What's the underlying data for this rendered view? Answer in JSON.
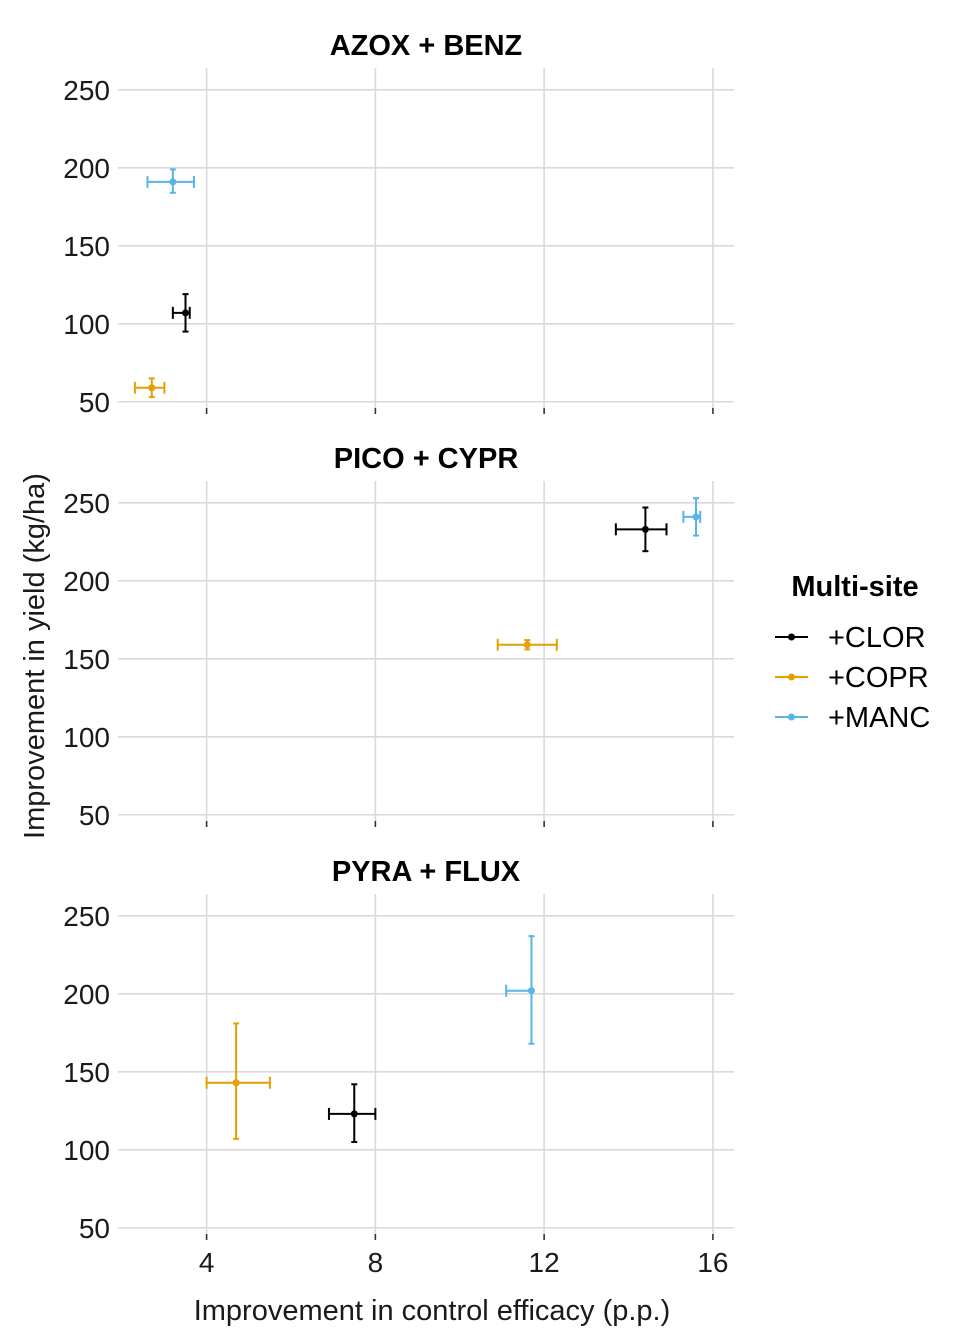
{
  "chart_data": {
    "type": "scatter",
    "subtype": "faceted scatter with horizontal and vertical error bars",
    "xlabel": "Improvement in control efficacy (p.p.)",
    "ylabel": "Improvement in yield (kg/ha)",
    "x_ticks": [
      4,
      8,
      12,
      16
    ],
    "x_tick_labels": [
      "4",
      "8",
      "12",
      "16"
    ],
    "xlim": [
      1.9,
      16.5
    ],
    "y_ticks": [
      50,
      100,
      150,
      200,
      250
    ],
    "y_tick_labels": [
      "50",
      "100",
      "150",
      "200",
      "250"
    ],
    "ylim": [
      46,
      264
    ],
    "grid": true,
    "legend": {
      "title": "Multi-site",
      "placement": "right",
      "entries": [
        {
          "label": "+CLOR",
          "color": "#000000"
        },
        {
          "label": "+COPR",
          "color": "#E69F00"
        },
        {
          "label": "+MANC",
          "color": "#56B4E9"
        }
      ]
    },
    "facets": [
      {
        "title": "AZOX + BENZ",
        "points": [
          {
            "series": "+CLOR",
            "x": 3.5,
            "y": 107,
            "x_low": 3.2,
            "x_high": 3.6,
            "y_low": 95,
            "y_high": 119
          },
          {
            "series": "+COPR",
            "x": 2.7,
            "y": 59,
            "x_low": 2.3,
            "x_high": 3.0,
            "y_low": 53,
            "y_high": 65
          },
          {
            "series": "+MANC",
            "x": 3.2,
            "y": 191,
            "x_low": 2.6,
            "x_high": 3.7,
            "y_low": 184,
            "y_high": 199
          }
        ]
      },
      {
        "title": "PICO + CYPR",
        "points": [
          {
            "series": "+CLOR",
            "x": 14.4,
            "y": 233,
            "x_low": 13.7,
            "x_high": 14.9,
            "y_low": 219,
            "y_high": 247
          },
          {
            "series": "+COPR",
            "x": 11.6,
            "y": 159,
            "x_low": 10.9,
            "x_high": 12.3,
            "y_low": 156,
            "y_high": 162
          },
          {
            "series": "+MANC",
            "x": 15.6,
            "y": 241,
            "x_low": 15.3,
            "x_high": 15.7,
            "y_low": 229,
            "y_high": 253
          }
        ]
      },
      {
        "title": "PYRA + FLUX",
        "points": [
          {
            "series": "+CLOR",
            "x": 7.5,
            "y": 123,
            "x_low": 6.9,
            "x_high": 8.0,
            "y_low": 105,
            "y_high": 142
          },
          {
            "series": "+COPR",
            "x": 4.7,
            "y": 143,
            "x_low": 4.0,
            "x_high": 5.5,
            "y_low": 107,
            "y_high": 181
          },
          {
            "series": "+MANC",
            "x": 11.7,
            "y": 202,
            "x_low": 11.1,
            "x_high": 11.7,
            "y_low": 168,
            "y_high": 237
          }
        ]
      }
    ]
  }
}
